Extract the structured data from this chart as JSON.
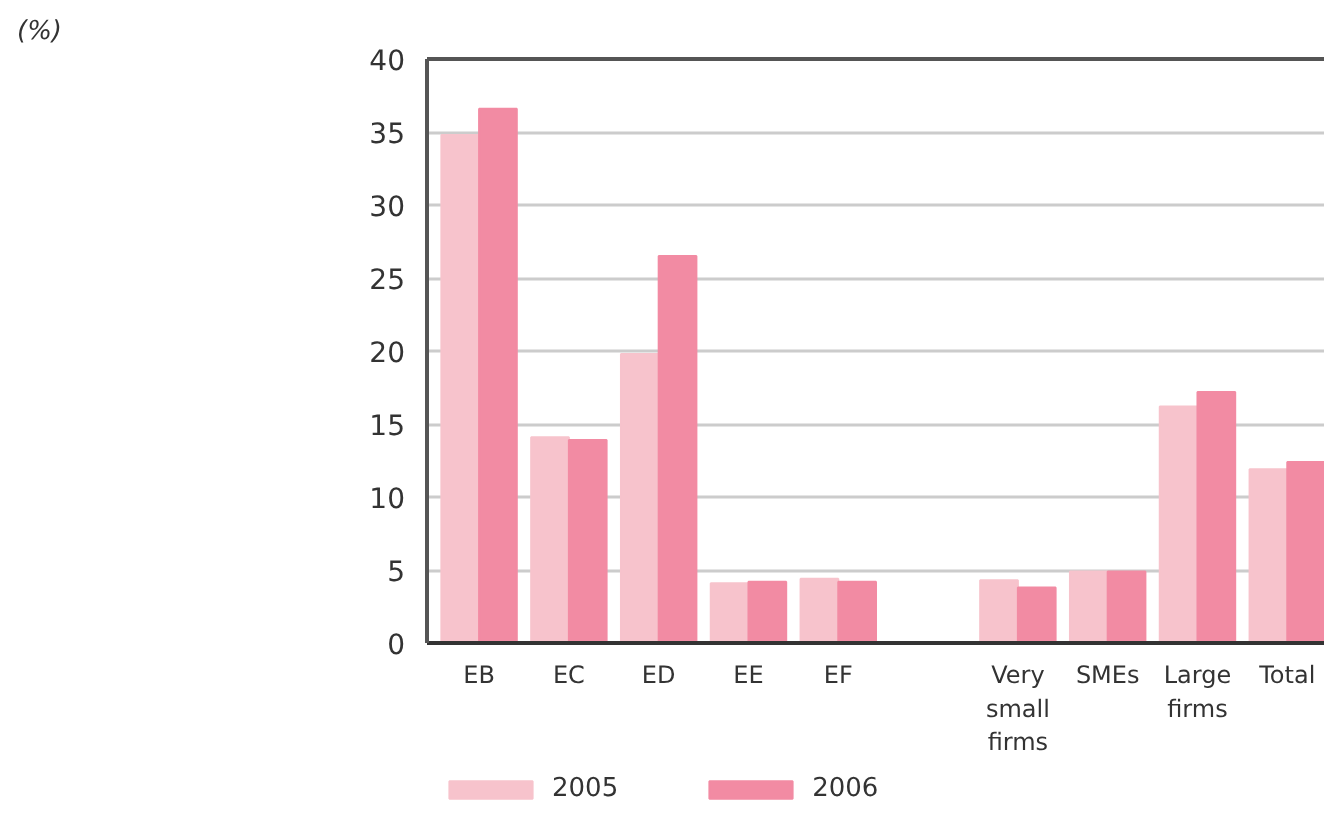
{
  "chart_data": {
    "type": "bar",
    "title": "(%)",
    "categories": [
      "EB",
      "EC",
      "ED",
      "EE",
      "EF",
      null,
      "Very small firms",
      "SMEs",
      "Large firms",
      "Total"
    ],
    "series": [
      {
        "name": "2005",
        "color": "#f7c3cc",
        "values": [
          34.8,
          14.1,
          19.8,
          4.1,
          4.4,
          null,
          4.3,
          4.9,
          16.2,
          11.9
        ]
      },
      {
        "name": "2006",
        "color": "#f28ba3",
        "values": [
          36.6,
          13.9,
          26.5,
          4.2,
          4.2,
          null,
          3.8,
          4.9,
          17.2,
          12.4
        ]
      }
    ],
    "ylim": [
      0,
      40
    ],
    "yticks": [
      0,
      5,
      10,
      15,
      20,
      25,
      30,
      35,
      40
    ],
    "grid": "y",
    "legend": "bottom"
  }
}
